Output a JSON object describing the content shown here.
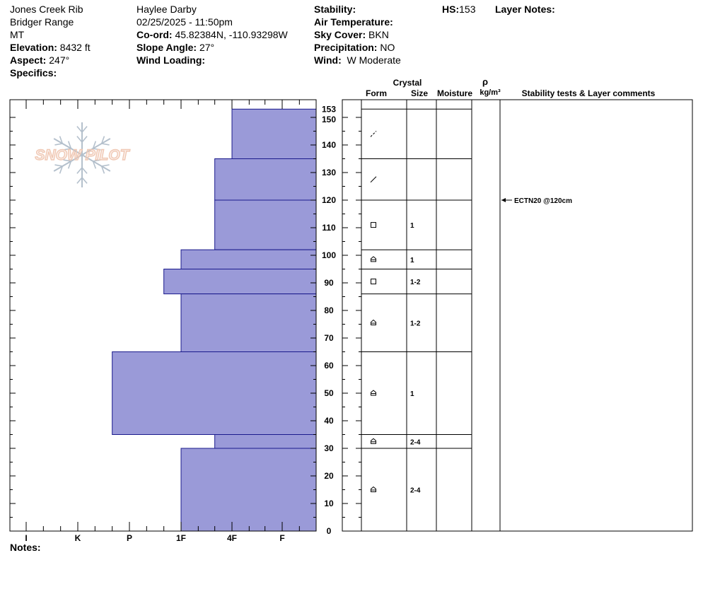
{
  "header": {
    "location": "Jones Creek Rib",
    "range": "Bridger Range",
    "state": "MT",
    "elevation_label": "Elevation:",
    "elevation_value": "8432 ft",
    "aspect_label": "Aspect:",
    "aspect_value": "247°",
    "specifics_label": "Specifics:",
    "observer": "Haylee Darby",
    "datetime": "02/25/2025 - 11:50pm",
    "coord_label": "Co-ord:",
    "coord_value": "45.82384N, -110.93298W",
    "slope_label": "Slope Angle:",
    "slope_value": "27°",
    "wind_loading_label": "Wind Loading:",
    "stability_label": "Stability:",
    "air_temp_label": "Air Temperature:",
    "sky_label": "Sky Cover:",
    "sky_value": "BKN",
    "precip_label": "Precipitation:",
    "precip_value": "NO",
    "wind_label": "Wind:",
    "wind_value": "W Moderate",
    "hs_label": "HS:",
    "hs_value": "153",
    "layer_notes_label": "Layer Notes:",
    "notes_label": "Notes:"
  },
  "logo": {
    "text": "SNOW PILOT"
  },
  "colors": {
    "layer_fill": "#9a9ad8",
    "layer_stroke": "#1a1a8c",
    "logo_text": "#f0c8b4",
    "logo_flake": "#b4c0cc"
  },
  "chart_data": {
    "type": "bar",
    "orientation": "horizontal",
    "description_axis": "height_cm",
    "ylim": [
      0,
      153
    ],
    "yticks": [
      0,
      10,
      20,
      30,
      40,
      50,
      60,
      70,
      80,
      90,
      100,
      110,
      120,
      130,
      140,
      150,
      153
    ],
    "hardness_scale": [
      "I",
      "K",
      "P",
      "1F",
      "4F",
      "F"
    ],
    "layers": [
      {
        "bottom": 135,
        "top": 153,
        "hardness": "4F",
        "form": "dec-fragment",
        "size": ""
      },
      {
        "bottom": 120,
        "top": 135,
        "hardness": "4F+",
        "form": "precip-particle",
        "size": ""
      },
      {
        "bottom": 102,
        "top": 120,
        "hardness": "4F+",
        "form": "faceted",
        "size": "1"
      },
      {
        "bottom": 95,
        "top": 102,
        "hardness": "1F",
        "form": "depth-hoar",
        "size": "1"
      },
      {
        "bottom": 86,
        "top": 95,
        "hardness": "1F+",
        "form": "faceted",
        "size": "1-2"
      },
      {
        "bottom": 65,
        "top": 86,
        "hardness": "1F",
        "form": "depth-hoar",
        "size": "1-2"
      },
      {
        "bottom": 35,
        "top": 65,
        "hardness": "P+",
        "form": "depth-hoar",
        "size": "1"
      },
      {
        "bottom": 30,
        "top": 35,
        "hardness": "4F+",
        "form": "depth-hoar",
        "size": "2-4"
      },
      {
        "bottom": 0,
        "top": 30,
        "hardness": "1F",
        "form": "depth-hoar",
        "size": "2-4"
      }
    ],
    "stability_tests": [
      {
        "height": 120,
        "label": "ECTN20 @120cm"
      }
    ],
    "columns": {
      "crystal": "Crystal",
      "form": "Form",
      "size": "Size",
      "moisture": "Moisture",
      "rho": "ρ",
      "density_unit": "kg/m³",
      "comments": "Stability tests & Layer comments"
    }
  }
}
